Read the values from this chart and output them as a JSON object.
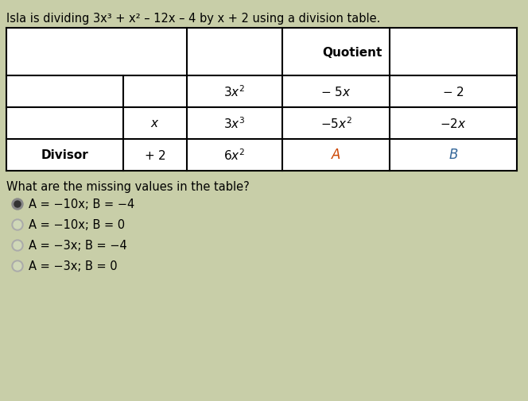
{
  "background_color": "#c8cea8",
  "title_line1": "Isla is dividing 3x",
  "title": "Isla is dividing 3x³ + x² – 12x – 4 by x + 2 using a division table.",
  "A_color": "#cc4400",
  "B_color": "#336699",
  "question": "What are the missing values in the table?",
  "options": [
    "A = −10x; B = −4",
    "A = −10x; B = 0",
    "A = −3x; B = −4",
    "A = −3x; B = 0"
  ]
}
